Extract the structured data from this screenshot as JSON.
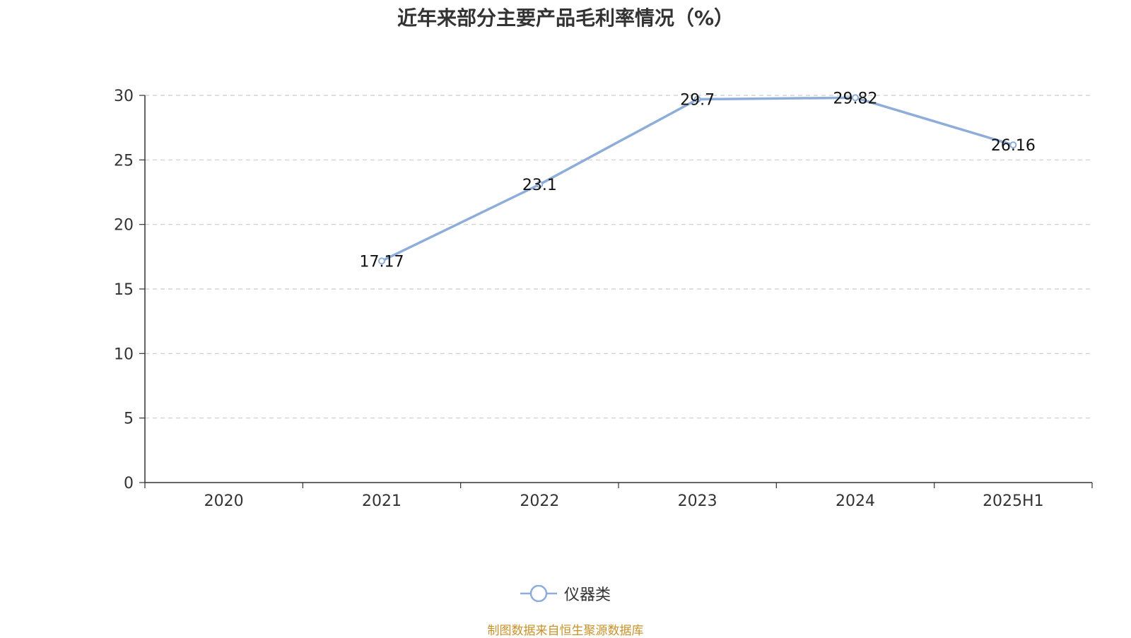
{
  "title": "近年来部分主要产品毛利率情况（%）",
  "source_note": "制图数据来自恒生聚源数据库",
  "chart_data": {
    "type": "line",
    "categories": [
      "2020",
      "2021",
      "2022",
      "2023",
      "2024",
      "2025H1"
    ],
    "series": [
      {
        "name": "仪器类",
        "values": [
          null,
          17.17,
          23.1,
          29.7,
          29.82,
          26.16
        ]
      }
    ],
    "data_labels": [
      "",
      "17.17",
      "23.1",
      "29.7",
      "29.82",
      "26.16"
    ],
    "yticks": [
      "0",
      "5",
      "10",
      "15",
      "20",
      "25",
      "30"
    ],
    "ylim": [
      0,
      30
    ],
    "grid": true,
    "legend_position": "bottom-center",
    "colors": {
      "series": "#8eadd9",
      "axis": "#333333",
      "grid": "#cccccc",
      "text": "#333333",
      "source": "#c8922a"
    }
  }
}
